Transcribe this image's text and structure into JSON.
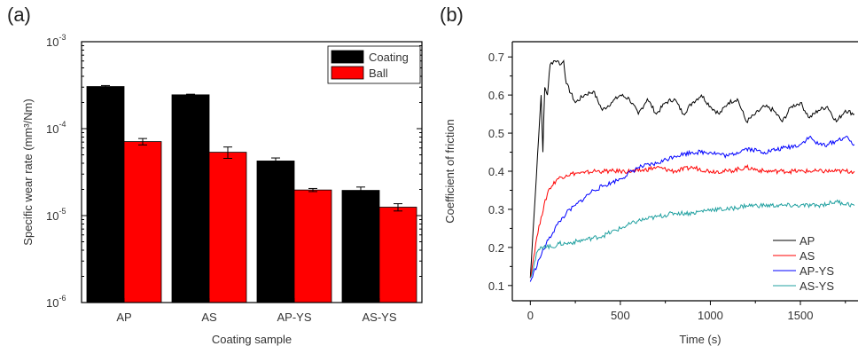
{
  "panels": {
    "a_label": "(a)",
    "b_label": "(b)"
  },
  "chart_data": [
    {
      "type": "bar",
      "panel": "(a)",
      "categories": [
        "AP",
        "AS",
        "AP-YS",
        "AS-YS"
      ],
      "series": [
        {
          "name": "Coating",
          "color": "#000000",
          "values": [
            0.000305,
            0.000245,
            4.25e-05,
            1.95e-05
          ],
          "errors": [
            8e-06,
            4e-06,
            3.5e-06,
            1.8e-06
          ]
        },
        {
          "name": "Ball",
          "color": "#ff0000",
          "values": [
            7.1e-05,
            5.35e-05,
            1.97e-05,
            1.25e-05
          ],
          "errors": [
            6e-06,
            8e-06,
            8e-07,
            1.2e-06
          ]
        }
      ],
      "xlabel": "Coating sample",
      "ylabel": "Specific wear rate (mm³/Nm)",
      "yscale": "log",
      "ylim": [
        1e-06,
        0.001
      ],
      "yticks": [
        {
          "base": "10",
          "exp": "-6"
        },
        {
          "base": "10",
          "exp": "-5"
        },
        {
          "base": "10",
          "exp": "-4"
        },
        {
          "base": "10",
          "exp": "-3"
        }
      ],
      "legend": "top-right",
      "grid": false
    },
    {
      "type": "line",
      "panel": "(b)",
      "xlabel": "Time (s)",
      "ylabel": "Coefficient of friction",
      "xlim": [
        -100,
        1820
      ],
      "ylim": [
        0.06,
        0.74
      ],
      "xticks": [
        "0",
        "500",
        "1000",
        "1500"
      ],
      "yticks": [
        "0.1",
        "0.2",
        "0.3",
        "0.4",
        "0.5",
        "0.6",
        "0.7"
      ],
      "legend": "bottom-right",
      "grid": false,
      "series": [
        {
          "name": "AP",
          "color": "#000000",
          "x": [
            0,
            20,
            40,
            60,
            70,
            80,
            95,
            110,
            130,
            150,
            170,
            185,
            200,
            250,
            300,
            350,
            400,
            450,
            500,
            550,
            600,
            650,
            700,
            750,
            800,
            850,
            900,
            950,
            1000,
            1050,
            1100,
            1150,
            1200,
            1250,
            1300,
            1350,
            1400,
            1450,
            1500,
            1550,
            1600,
            1650,
            1700,
            1750,
            1800
          ],
          "y": [
            0.12,
            0.28,
            0.44,
            0.6,
            0.45,
            0.62,
            0.6,
            0.68,
            0.69,
            0.69,
            0.68,
            0.69,
            0.63,
            0.58,
            0.6,
            0.61,
            0.56,
            0.58,
            0.6,
            0.59,
            0.55,
            0.59,
            0.55,
            0.58,
            0.59,
            0.55,
            0.58,
            0.6,
            0.57,
            0.55,
            0.58,
            0.59,
            0.53,
            0.55,
            0.57,
            0.56,
            0.53,
            0.57,
            0.58,
            0.54,
            0.56,
            0.57,
            0.53,
            0.56,
            0.55
          ]
        },
        {
          "name": "AS",
          "color": "#ff0000",
          "x": [
            0,
            30,
            60,
            100,
            150,
            200,
            250,
            300,
            350,
            400,
            450,
            500,
            600,
            700,
            800,
            900,
            1000,
            1100,
            1200,
            1300,
            1400,
            1500,
            1600,
            1700,
            1800
          ],
          "y": [
            0.12,
            0.21,
            0.28,
            0.35,
            0.38,
            0.39,
            0.395,
            0.395,
            0.4,
            0.4,
            0.4,
            0.4,
            0.4,
            0.41,
            0.4,
            0.41,
            0.4,
            0.4,
            0.41,
            0.4,
            0.4,
            0.4,
            0.4,
            0.4,
            0.4
          ]
        },
        {
          "name": "AP-YS",
          "color": "#0000ff",
          "x": [
            0,
            50,
            100,
            150,
            200,
            250,
            300,
            350,
            400,
            450,
            500,
            600,
            700,
            800,
            900,
            1000,
            1100,
            1200,
            1300,
            1400,
            1500,
            1550,
            1600,
            1650,
            1700,
            1750,
            1800
          ],
          "y": [
            0.11,
            0.17,
            0.22,
            0.26,
            0.29,
            0.31,
            0.33,
            0.35,
            0.36,
            0.37,
            0.38,
            0.41,
            0.42,
            0.44,
            0.45,
            0.45,
            0.44,
            0.46,
            0.45,
            0.46,
            0.47,
            0.49,
            0.47,
            0.47,
            0.48,
            0.49,
            0.47
          ]
        },
        {
          "name": "AS-YS",
          "color": "#20a0a0",
          "x": [
            0,
            40,
            80,
            120,
            160,
            200,
            300,
            400,
            500,
            600,
            700,
            800,
            900,
            1000,
            1100,
            1200,
            1300,
            1400,
            1500,
            1600,
            1700,
            1800
          ],
          "y": [
            0.12,
            0.19,
            0.205,
            0.2,
            0.21,
            0.21,
            0.22,
            0.23,
            0.25,
            0.27,
            0.28,
            0.29,
            0.29,
            0.3,
            0.3,
            0.31,
            0.31,
            0.31,
            0.31,
            0.31,
            0.32,
            0.31
          ]
        }
      ]
    }
  ]
}
